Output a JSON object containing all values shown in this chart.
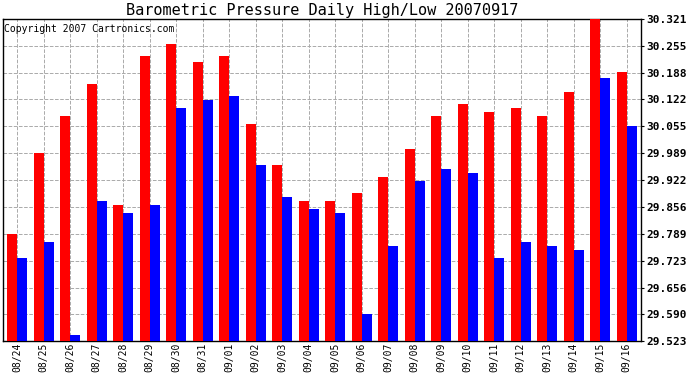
{
  "title": "Barometric Pressure Daily High/Low 20070917",
  "copyright": "Copyright 2007 Cartronics.com",
  "labels": [
    "08/24",
    "08/25",
    "08/26",
    "08/27",
    "08/28",
    "08/29",
    "08/30",
    "08/31",
    "09/01",
    "09/02",
    "09/03",
    "09/04",
    "09/05",
    "09/06",
    "09/07",
    "09/08",
    "09/09",
    "09/10",
    "09/11",
    "09/12",
    "09/13",
    "09/14",
    "09/15",
    "09/16"
  ],
  "highs": [
    29.79,
    29.99,
    30.08,
    30.16,
    29.86,
    30.23,
    30.26,
    30.215,
    30.23,
    30.06,
    29.96,
    29.87,
    29.87,
    29.89,
    29.93,
    30.0,
    30.08,
    30.11,
    30.09,
    30.1,
    30.08,
    30.14,
    30.33,
    30.19
  ],
  "lows": [
    29.73,
    29.77,
    29.54,
    29.87,
    29.84,
    29.86,
    30.1,
    30.12,
    30.13,
    29.96,
    29.88,
    29.85,
    29.84,
    29.59,
    29.76,
    29.92,
    29.95,
    29.94,
    29.73,
    29.77,
    29.76,
    29.75,
    30.175,
    30.055
  ],
  "ylim_min": 29.523,
  "ylim_max": 30.321,
  "yticks": [
    29.523,
    29.59,
    29.656,
    29.723,
    29.789,
    29.856,
    29.922,
    29.989,
    30.055,
    30.122,
    30.188,
    30.255,
    30.321
  ],
  "bar_width": 0.38,
  "high_color": "#ff0000",
  "low_color": "#0000ff",
  "background_color": "#ffffff",
  "grid_color": "#aaaaaa",
  "title_fontsize": 11,
  "copyright_fontsize": 7
}
